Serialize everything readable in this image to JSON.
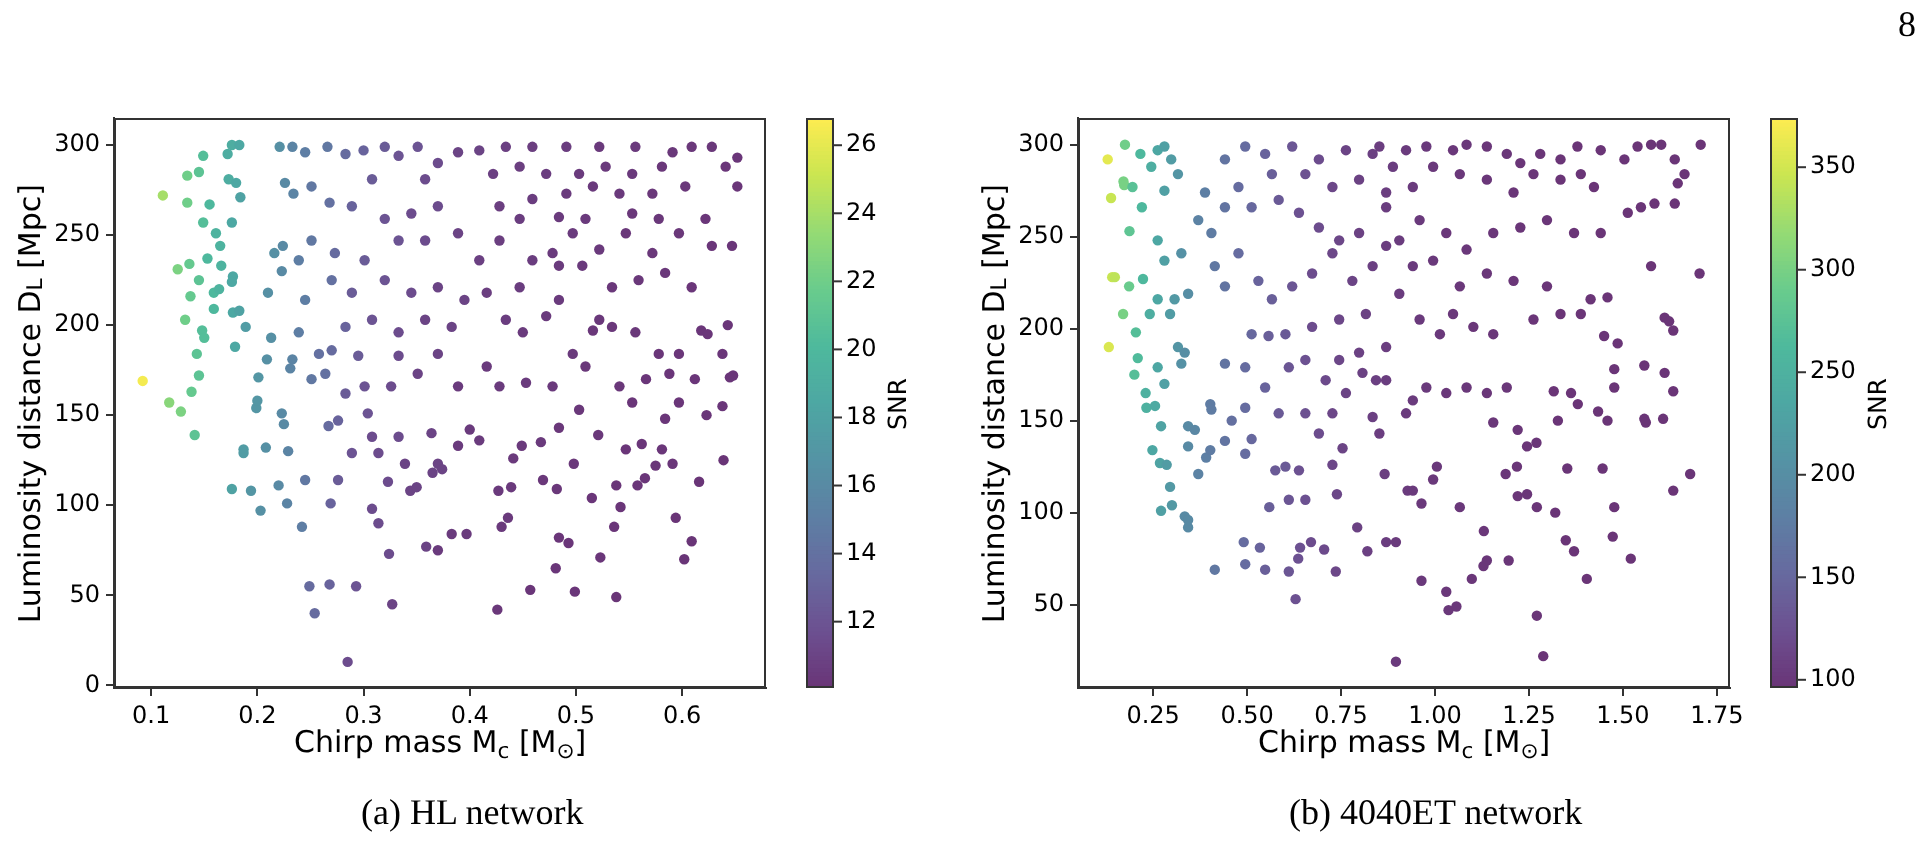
{
  "chart_data": [
    {
      "type": "scatter",
      "xlabel": "Chirp mass M$_{c}$ [M$_{⊙}$]",
      "ylabel": "Luminosity distance D$_{L}$ [Mpc]",
      "clabel": "SNR",
      "annotations": [
        "(a) HL network"
      ],
      "marker": "circle",
      "xlim": [
        0.065,
        0.679
      ],
      "ylim": [
        -1.5,
        315
      ],
      "xticks": [
        0.1,
        0.2,
        0.3,
        0.4,
        0.5,
        0.6
      ],
      "yticks": [
        0,
        50,
        100,
        150,
        200,
        250,
        300
      ],
      "clim": [
        10.05,
        26.8
      ],
      "cticks": [
        12,
        14,
        16,
        18,
        20,
        22,
        24,
        26
      ],
      "x": [
        0.092,
        0.111,
        0.117,
        0.125,
        0.128,
        0.132,
        0.134,
        0.134,
        0.136,
        0.137,
        0.138,
        0.141,
        0.143,
        0.145,
        0.145,
        0.145,
        0.148,
        0.149,
        0.149,
        0.15,
        0.153,
        0.155,
        0.159,
        0.159,
        0.161,
        0.164,
        0.165,
        0.166,
        0.172,
        0.173,
        0.176,
        0.176,
        0.176,
        0.177,
        0.176,
        0.177,
        0.179,
        0.18,
        0.183,
        0.183,
        0.184,
        0.187,
        0.187,
        0.189,
        0.194,
        0.199,
        0.2,
        0.201,
        0.203,
        0.208,
        0.209,
        0.21,
        0.213,
        0.216,
        0.22,
        0.221,
        0.223,
        0.223,
        0.224,
        0.225,
        0.226,
        0.228,
        0.229,
        0.231,
        0.233,
        0.233,
        0.234,
        0.239,
        0.239,
        0.242,
        0.245,
        0.245,
        0.245,
        0.249,
        0.251,
        0.251,
        0.251,
        0.254,
        0.258,
        0.264,
        0.266,
        0.267,
        0.268,
        0.268,
        0.269,
        0.27,
        0.27,
        0.273,
        0.276,
        0.276,
        0.283,
        0.283,
        0.283,
        0.285,
        0.289,
        0.289,
        0.289,
        0.293,
        0.295,
        0.3,
        0.301,
        0.301,
        0.304,
        0.308,
        0.308,
        0.308,
        0.308,
        0.314,
        0.314,
        0.32,
        0.32,
        0.32,
        0.323,
        0.324,
        0.326,
        0.327,
        0.333,
        0.333,
        0.333,
        0.333,
        0.333,
        0.339,
        0.344,
        0.345,
        0.345,
        0.35,
        0.351,
        0.351,
        0.358,
        0.358,
        0.358,
        0.359,
        0.364,
        0.365,
        0.37,
        0.37,
        0.37,
        0.37,
        0.37,
        0.37,
        0.374,
        0.383,
        0.383,
        0.389,
        0.389,
        0.389,
        0.389,
        0.395,
        0.397,
        0.4,
        0.409,
        0.409,
        0.409,
        0.416,
        0.416,
        0.422,
        0.426,
        0.427,
        0.428,
        0.428,
        0.428,
        0.43,
        0.434,
        0.434,
        0.436,
        0.439,
        0.441,
        0.447,
        0.447,
        0.447,
        0.449,
        0.45,
        0.453,
        0.457,
        0.459,
        0.459,
        0.459,
        0.467,
        0.469,
        0.472,
        0.472,
        0.478,
        0.478,
        0.481,
        0.482,
        0.484,
        0.484,
        0.484,
        0.484,
        0.484,
        0.491,
        0.491,
        0.493,
        0.497,
        0.497,
        0.498,
        0.499,
        0.503,
        0.503,
        0.506,
        0.509,
        0.509,
        0.515,
        0.516,
        0.516,
        0.521,
        0.522,
        0.522,
        0.522,
        0.523,
        0.528,
        0.534,
        0.534,
        0.536,
        0.538,
        0.538,
        0.541,
        0.541,
        0.542,
        0.547,
        0.547,
        0.553,
        0.553,
        0.553,
        0.556,
        0.556,
        0.558,
        0.559,
        0.562,
        0.565,
        0.566,
        0.572,
        0.572,
        0.575,
        0.578,
        0.578,
        0.581,
        0.581,
        0.584,
        0.584,
        0.588,
        0.591,
        0.591,
        0.594,
        0.597,
        0.597,
        0.597,
        0.602,
        0.603,
        0.609,
        0.609,
        0.609,
        0.612,
        0.616,
        0.618,
        0.622,
        0.623,
        0.624,
        0.628,
        0.628,
        0.638,
        0.638,
        0.639,
        0.641,
        0.643,
        0.645,
        0.647,
        0.648,
        0.652,
        0.652
      ],
      "values": [
        169,
        272,
        157,
        231,
        152,
        203,
        283,
        268,
        234,
        216,
        163,
        139,
        184,
        172,
        285,
        225,
        197,
        294,
        257,
        193,
        237,
        267,
        209,
        218,
        251,
        220,
        244,
        233,
        295,
        281,
        300,
        257,
        109,
        227,
        224,
        207,
        188,
        279,
        300,
        208,
        271,
        131,
        129,
        199,
        108,
        154,
        158,
        171,
        97,
        132,
        181,
        218,
        193,
        240,
        111,
        299,
        230,
        151,
        244,
        145,
        279,
        101,
        130,
        176,
        181,
        299,
        273,
        236,
        196,
        88,
        214,
        114,
        296,
        55,
        277,
        247,
        170,
        40,
        184,
        173,
        299,
        144,
        268,
        56,
        101,
        225,
        186,
        240,
        147,
        114,
        295,
        199,
        162,
        13,
        266,
        218,
        129,
        55,
        183,
        297,
        236,
        166,
        151,
        281,
        203,
        138,
        98,
        129,
        90,
        299,
        259,
        225,
        113,
        73,
        166,
        45,
        294,
        247,
        196,
        183,
        138,
        123,
        108,
        262,
        218,
        110,
        299,
        173,
        281,
        247,
        203,
        77,
        140,
        118,
        290,
        266,
        221,
        184,
        123,
        75,
        120,
        199,
        84,
        296,
        251,
        166,
        133,
        214,
        84,
        142,
        136,
        236,
        297,
        177,
        218,
        284,
        42,
        108,
        166,
        247,
        266,
        88,
        203,
        299,
        93,
        110,
        126,
        288,
        259,
        221,
        133,
        196,
        168,
        53,
        299,
        270,
        236,
        135,
        114,
        284,
        205,
        240,
        166,
        65,
        109,
        82,
        143,
        214,
        233,
        260,
        299,
        273,
        79,
        184,
        251,
        123,
        52,
        284,
        153,
        233,
        177,
        259,
        104,
        197,
        277,
        139,
        299,
        203,
        242,
        71,
        288,
        199,
        221,
        88,
        49,
        111,
        273,
        166,
        99,
        131,
        251,
        284,
        262,
        157,
        299,
        196,
        111,
        225,
        134,
        115,
        170,
        273,
        240,
        122,
        184,
        259,
        131,
        288,
        229,
        148,
        173,
        123,
        296,
        93,
        184,
        251,
        157,
        70,
        277,
        80,
        221,
        299,
        170,
        113,
        197,
        259,
        150,
        195,
        244,
        299,
        184,
        155,
        125,
        288,
        200,
        171,
        244,
        172,
        293,
        277
      ],
      "cvalues": [
        26.5,
        24,
        23,
        22.5,
        22.5,
        22,
        22,
        22,
        21.5,
        21.5,
        21.5,
        21,
        21,
        21,
        21,
        21,
        20.5,
        20.5,
        20.5,
        20.5,
        20,
        20,
        20,
        20,
        19.5,
        19.5,
        19.5,
        19.5,
        19,
        19,
        19,
        18.5,
        18,
        18.5,
        18.5,
        18.5,
        18.5,
        18.5,
        18.5,
        18,
        18,
        17.5,
        17.5,
        17.5,
        17,
        17,
        17,
        17,
        16.5,
        16.5,
        16.5,
        16.5,
        16.5,
        16.5,
        16,
        16.5,
        16,
        16,
        16,
        16,
        16,
        15.5,
        15.5,
        15.5,
        15.5,
        15.5,
        15.5,
        15,
        15,
        15,
        15,
        14.5,
        15,
        13.5,
        14.5,
        14.5,
        14.5,
        13.5,
        14,
        14,
        14.5,
        13.5,
        14,
        13,
        13,
        14,
        13.5,
        13.5,
        13,
        12.5,
        13.5,
        13,
        12.5,
        11.5,
        13,
        12.5,
        12,
        12,
        12.5,
        13,
        12.5,
        12,
        12,
        12.5,
        12,
        11.5,
        11.5,
        11.5,
        11.5,
        12.5,
        12,
        12,
        11.5,
        11.5,
        11.5,
        11,
        12,
        12,
        11.5,
        11.5,
        11.5,
        11,
        11,
        11.5,
        11.5,
        11,
        12,
        11,
        11.5,
        11.5,
        11,
        11,
        11,
        11,
        11.5,
        11.5,
        11,
        11,
        11,
        10.5,
        11,
        11,
        10.5,
        11,
        11,
        10.5,
        10.5,
        11,
        10.5,
        10.5,
        10.5,
        10.8,
        11,
        10.5,
        10.7,
        10.8,
        10.3,
        10.4,
        10.5,
        10.7,
        10.7,
        10.4,
        10.6,
        10.8,
        10.4,
        10.4,
        10.4,
        10.7,
        10.6,
        10.6,
        10.4,
        10.5,
        10.5,
        10.2,
        10.7,
        10.6,
        10.6,
        10.4,
        10.3,
        10.6,
        10.5,
        10.5,
        10.4,
        10.2,
        10.3,
        10.2,
        10.3,
        10.5,
        10.5,
        10.5,
        10.6,
        10.5,
        10.2,
        10.4,
        10.5,
        10.3,
        10.2,
        10.5,
        10.3,
        10.4,
        10.3,
        10.4,
        10.2,
        10.3,
        10.4,
        10.3,
        10.4,
        10.3,
        10.4,
        10.2,
        10.4,
        10.3,
        10.3,
        10.2,
        10.1,
        10.2,
        10.4,
        10.3,
        10.2,
        10.2,
        10.3,
        10.4,
        10.3,
        10.2,
        10.4,
        10.3,
        10.2,
        10.3,
        10.2,
        10.2,
        10.2,
        10.3,
        10.3,
        10.2,
        10.2,
        10.3,
        10.2,
        10.3,
        10.3,
        10.2,
        10.2,
        10.2,
        10.3,
        10.1,
        10.2,
        10.3,
        10.2,
        10.1,
        10.3,
        10.1,
        10.2,
        10.3,
        10.2,
        10.1,
        10.2,
        10.2,
        10.2,
        10.2,
        10.2,
        10.3,
        10.2,
        10.2,
        10.1,
        10.2,
        10.2,
        10.2,
        10.2,
        10.2,
        10.2,
        10.2
      ]
    },
    {
      "type": "scatter",
      "xlabel": "Chirp mass M$_{c}$ [M$_{⊙}$]",
      "ylabel": "Luminosity distance D$_{L}$ [Mpc]",
      "clabel": "SNR",
      "annotations": [
        "(b) 4040ET network",
        "8"
      ],
      "marker": "circle",
      "xlim": [
        0.05,
        1.785
      ],
      "ylim": [
        4.7,
        314.5
      ],
      "xticks": [
        0.25,
        {
          "value": 0.5,
          "label": "0.50"
        },
        0.75,
        {
          "value": 1,
          "label": "1.00"
        },
        1.25,
        {
          "value": 1.5,
          "label": "1.50"
        },
        1.75
      ],
      "yticks": [
        50,
        100,
        150,
        200,
        250,
        300
      ],
      "clim": [
        96,
        374
      ],
      "cticks": [
        100,
        150,
        200,
        250,
        300,
        350
      ],
      "x": [
        0.129,
        0.138,
        0.132,
        0.141,
        0.148,
        0.17,
        0.171,
        0.173,
        0.175,
        0.186,
        0.187,
        0.195,
        0.2,
        0.204,
        0.209,
        0.216,
        0.22,
        0.223,
        0.23,
        0.232,
        0.241,
        0.245,
        0.248,
        0.255,
        0.262,
        0.262,
        0.262,
        0.262,
        0.268,
        0.271,
        0.271,
        0.28,
        0.28,
        0.28,
        0.28,
        0.286,
        0.295,
        0.295,
        0.298,
        0.3,
        0.307,
        0.316,
        0.316,
        0.325,
        0.325,
        0.334,
        0.334,
        0.343,
        0.343,
        0.343,
        0.343,
        0.343,
        0.361,
        0.37,
        0.37,
        0.388,
        0.391,
        0.402,
        0.402,
        0.405,
        0.405,
        0.414,
        0.414,
        0.441,
        0.441,
        0.441,
        0.441,
        0.441,
        0.459,
        0.477,
        0.477,
        0.491,
        0.495,
        0.495,
        0.495,
        0.495,
        0.495,
        0.512,
        0.512,
        0.512,
        0.53,
        0.534,
        0.548,
        0.548,
        0.548,
        0.557,
        0.559,
        0.566,
        0.566,
        0.575,
        0.584,
        0.584,
        0.602,
        0.602,
        0.611,
        0.611,
        0.611,
        0.62,
        0.62,
        0.629,
        0.636,
        0.638,
        0.638,
        0.641,
        0.655,
        0.655,
        0.655,
        0.655,
        0.67,
        0.673,
        0.673,
        0.691,
        0.691,
        0.691,
        0.705,
        0.709,
        0.727,
        0.727,
        0.727,
        0.727,
        0.736,
        0.739,
        0.745,
        0.745,
        0.745,
        0.754,
        0.763,
        0.763,
        0.78,
        0.793,
        0.798,
        0.798,
        0.798,
        0.807,
        0.816,
        0.82,
        0.834,
        0.834,
        0.834,
        0.843,
        0.852,
        0.852,
        0.866,
        0.87,
        0.87,
        0.87,
        0.87,
        0.87,
        0.87,
        0.888,
        0.896,
        0.896,
        0.905,
        0.905,
        0.923,
        0.923,
        0.927,
        0.941,
        0.941,
        0.941,
        0.941,
        0.959,
        0.959,
        0.964,
        0.964,
        0.977,
        0.977,
        0.995,
        0.995,
        0.995,
        1.005,
        1.013,
        1.03,
        1.03,
        1.03,
        1.036,
        1.048,
        1.048,
        1.057,
        1.066,
        1.066,
        1.066,
        1.084,
        1.084,
        1.084,
        1.098,
        1.102,
        1.129,
        1.13,
        1.138,
        1.138,
        1.138,
        1.138,
        1.138,
        1.155,
        1.155,
        1.155,
        1.188,
        1.191,
        1.191,
        1.196,
        1.209,
        1.209,
        1.218,
        1.22,
        1.22,
        1.227,
        1.227,
        1.245,
        1.245,
        1.262,
        1.262,
        1.27,
        1.271,
        1.271,
        1.28,
        1.288,
        1.298,
        1.298,
        1.316,
        1.32,
        1.327,
        1.334,
        1.334,
        1.334,
        1.348,
        1.352,
        1.362,
        1.37,
        1.37,
        1.379,
        1.38,
        1.388,
        1.388,
        1.404,
        1.414,
        1.423,
        1.434,
        1.441,
        1.441,
        1.446,
        1.45,
        1.459,
        1.459,
        1.473,
        1.477,
        1.477,
        1.477,
        1.486,
        1.504,
        1.513,
        1.521,
        1.539,
        1.548,
        1.557,
        1.557,
        1.561,
        1.575,
        1.575,
        1.584,
        1.602,
        1.607,
        1.611,
        1.611,
        1.623,
        1.634,
        1.634,
        1.634,
        1.638,
        1.638,
        1.646,
        1.664,
        1.679,
        1.704,
        1.707
      ],
      "values": [
        292,
        271,
        190,
        228,
        228,
        208,
        280,
        278,
        300,
        223,
        253,
        277,
        175,
        198,
        184,
        295,
        266,
        227,
        165,
        157,
        208,
        288,
        134,
        158,
        179,
        216,
        248,
        297,
        127,
        147,
        101,
        170,
        237,
        275,
        299,
        126,
        114,
        208,
        292,
        104,
        216,
        190,
        284,
        181,
        241,
        187,
        98,
        92,
        96,
        136,
        147,
        219,
        145,
        121,
        259,
        274,
        130,
        134,
        159,
        156,
        252,
        69,
        234,
        139,
        181,
        223,
        266,
        292,
        150,
        241,
        277,
        84,
        72,
        132,
        157,
        179,
        299,
        140,
        197,
        266,
        226,
        81,
        69,
        168,
        295,
        196,
        103,
        216,
        284,
        123,
        154,
        270,
        125,
        197,
        68,
        107,
        179,
        223,
        299,
        53,
        75,
        123,
        263,
        81,
        107,
        154,
        183,
        284,
        84,
        201,
        230,
        143,
        255,
        292,
        80,
        172,
        126,
        154,
        241,
        277,
        68,
        110,
        183,
        205,
        248,
        135,
        165,
        297,
        226,
        92,
        187,
        252,
        281,
        176,
        208,
        79,
        152,
        234,
        295,
        172,
        143,
        299,
        121,
        84,
        190,
        245,
        274,
        172,
        266,
        288,
        19,
        84,
        219,
        248,
        154,
        297,
        112,
        112,
        161,
        234,
        277,
        205,
        259,
        63,
        105,
        168,
        299,
        118,
        237,
        288,
        125,
        197,
        57,
        165,
        252,
        47,
        208,
        297,
        49,
        103,
        223,
        284,
        168,
        243,
        300,
        64,
        201,
        71,
        90,
        74,
        165,
        230,
        281,
        299,
        149,
        197,
        252,
        121,
        168,
        295,
        74,
        226,
        274,
        125,
        109,
        145,
        255,
        290,
        110,
        136,
        205,
        284,
        138,
        44,
        103,
        295,
        22,
        223,
        259,
        166,
        100,
        150,
        208,
        281,
        292,
        85,
        124,
        165,
        79,
        252,
        299,
        159,
        208,
        284,
        64,
        216,
        277,
        155,
        252,
        297,
        124,
        196,
        150,
        217,
        87,
        103,
        168,
        178,
        192,
        292,
        263,
        75,
        299,
        266,
        151,
        180,
        149,
        234,
        300,
        268,
        300,
        151,
        176,
        206,
        204,
        112,
        166,
        199,
        268,
        292,
        279,
        284,
        121,
        230,
        300
      ],
      "cvalues": [
        360,
        345,
        355,
        345,
        340,
        300,
        300,
        300,
        295,
        290,
        280,
        275,
        270,
        270,
        265,
        260,
        260,
        260,
        250,
        250,
        245,
        245,
        235,
        240,
        235,
        235,
        235,
        235,
        230,
        230,
        225,
        225,
        225,
        225,
        225,
        220,
        215,
        220,
        220,
        215,
        215,
        210,
        210,
        205,
        205,
        200,
        195,
        195,
        195,
        195,
        195,
        200,
        190,
        185,
        185,
        180,
        180,
        175,
        175,
        175,
        175,
        170,
        170,
        165,
        165,
        165,
        165,
        165,
        160,
        155,
        155,
        155,
        155,
        155,
        155,
        155,
        155,
        150,
        150,
        150,
        145,
        145,
        140,
        145,
        145,
        140,
        140,
        140,
        140,
        135,
        135,
        135,
        135,
        135,
        130,
        130,
        130,
        130,
        130,
        125,
        125,
        125,
        125,
        125,
        125,
        125,
        125,
        125,
        120,
        120,
        120,
        120,
        120,
        120,
        118,
        118,
        115,
        115,
        115,
        115,
        115,
        115,
        115,
        115,
        115,
        112,
        112,
        112,
        112,
        110,
        110,
        110,
        110,
        110,
        110,
        108,
        108,
        108,
        108,
        108,
        106,
        106,
        106,
        105,
        106,
        106,
        106,
        105,
        105,
        105,
        102,
        103,
        104,
        104,
        103,
        103,
        103,
        102,
        103,
        103,
        103,
        102,
        102,
        101,
        101,
        102,
        102,
        101,
        101,
        101,
        101,
        101,
        100,
        100,
        100,
        100,
        100,
        100,
        100,
        100,
        100,
        100,
        100,
        100,
        100,
        99,
        99,
        99,
        99,
        99,
        99,
        99,
        99,
        99,
        99,
        99,
        99,
        99,
        99,
        99,
        98,
        98,
        98,
        98,
        98,
        98,
        98,
        98,
        98,
        98,
        98,
        98,
        98,
        98,
        98,
        98,
        97,
        98,
        98,
        97,
        97,
        97,
        97,
        97,
        97,
        97,
        97,
        97,
        97,
        97,
        97,
        97,
        97,
        97,
        97,
        97,
        97,
        97,
        97,
        97,
        97,
        97,
        97,
        97,
        97,
        97,
        97,
        97,
        97,
        97,
        97,
        97,
        97,
        97,
        97,
        97,
        97,
        97,
        97,
        97,
        97,
        97,
        97,
        97,
        97,
        97,
        97,
        97,
        97,
        97,
        97,
        97,
        97,
        97,
        97
      ]
    }
  ]
}
